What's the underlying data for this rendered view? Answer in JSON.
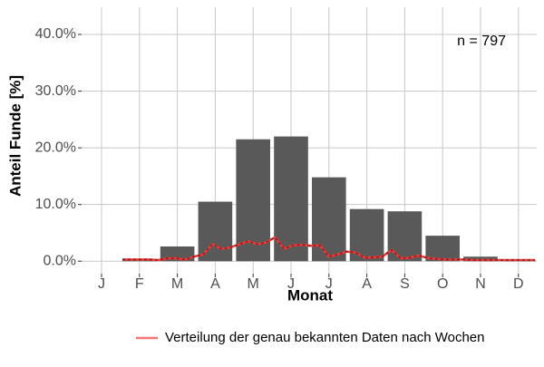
{
  "chart_data": {
    "type": "bar",
    "y_label": "Anteil Funde [%]",
    "x_label": "Monat",
    "annotation": "n = 797",
    "categories": [
      "J",
      "F",
      "M",
      "A",
      "M",
      "J",
      "J",
      "A",
      "S",
      "O",
      "N",
      "D"
    ],
    "values": [
      0,
      0.2,
      2.6,
      10.5,
      21.5,
      22.0,
      14.8,
      9.2,
      8.8,
      4.5,
      0.8,
      0.2
    ],
    "color": "#595959",
    "line": {
      "name": "Verteilung der genau bekannten Daten nach Wochen",
      "color": "#ee3b3b",
      "values": [
        0.3,
        0.3,
        0.3,
        0.3,
        0.2,
        0.5,
        0.5,
        0.3,
        0.8,
        1.2,
        3.0,
        2.2,
        2.4,
        3.0,
        3.5,
        3.0,
        3.3,
        4.2,
        2.2,
        2.8,
        2.9,
        2.7,
        2.8,
        0.8,
        1.2,
        1.7,
        1.5,
        0.6,
        0.7,
        0.8,
        2.0,
        0.5,
        0.6,
        1.0,
        0.6,
        0.4,
        0.3,
        0.3,
        0.3,
        0.2,
        0.2,
        0.2,
        0.2,
        0.2,
        0.2,
        0.2,
        0.2
      ]
    },
    "ylim": [
      -2.2,
      44.8
    ],
    "yticks": [
      {
        "value": 0,
        "label": "0.0%"
      },
      {
        "value": 10,
        "label": "10.0%"
      },
      {
        "value": 20,
        "label": "20.0%"
      },
      {
        "value": 30,
        "label": "30.0%"
      },
      {
        "value": 40,
        "label": "40.0%"
      }
    ],
    "grid": true
  }
}
